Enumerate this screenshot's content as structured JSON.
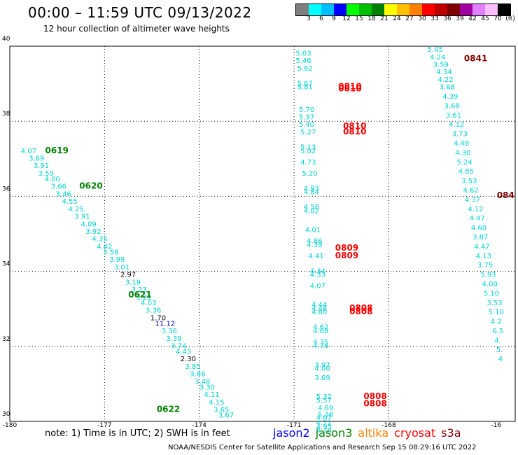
{
  "header": {
    "title": "00:00 – 11:59 UTC 09/13/2022",
    "subtitle": "12 hour collection of altimeter wave heights"
  },
  "colorbar": {
    "colors": [
      "#7f7f7f",
      "#00ffff",
      "#00bfff",
      "#0000ff",
      "#00ff00",
      "#00c000",
      "#008000",
      "#ffff00",
      "#ffc000",
      "#ff8000",
      "#ff0000",
      "#c00000",
      "#800000",
      "#a000a0",
      "#e080ff",
      "#ffbfff",
      "#000000"
    ],
    "labels": [
      "3",
      "6",
      "9",
      "12",
      "15",
      "18",
      "21",
      "24",
      "27",
      "30",
      "33",
      "36",
      "39",
      "42",
      "45",
      "70",
      "(ft)"
    ]
  },
  "axes": {
    "lon_labels": [
      "-180",
      "-177",
      "-174",
      "-171",
      "-168",
      "-16"
    ],
    "lat_labels": [
      "40",
      "38",
      "36",
      "34",
      "32",
      "30"
    ]
  },
  "note": "note:  1) Time is in UTC;  2) SWH is in feet",
  "legend": [
    {
      "name": "jason2",
      "color": "#0000ff"
    },
    {
      "name": "jason3",
      "color": "#008000"
    },
    {
      "name": "altika",
      "color": "#ff8000"
    },
    {
      "name": "cryosat",
      "color": "#ff0000"
    },
    {
      "name": "s3a",
      "color": "#800000"
    }
  ],
  "footer": "NOAA/NESDIS Center for Satellite Applications and Research    Sep 15 08:29:16 UTC 2022",
  "track_colors": {
    "cyan": "#00d0d0",
    "dark": "#000000",
    "blue": "#0000c0",
    "green": "#008000",
    "red": "#ff0000",
    "maroon": "#800000"
  },
  "chart_data": {
    "type": "scatter",
    "xlim": [
      -180,
      -164
    ],
    "ylim": [
      30,
      40
    ],
    "grid": true,
    "time_labels": [
      {
        "lon": -178.88,
        "lat": 37.15,
        "text": "0619",
        "color": "green"
      },
      {
        "lon": -177.8,
        "lat": 36.2,
        "text": "0620",
        "color": "green"
      },
      {
        "lon": -176.25,
        "lat": 33.3,
        "text": "0621",
        "color": "green"
      },
      {
        "lon": -175.35,
        "lat": 30.25,
        "text": "0622",
        "color": "green"
      },
      {
        "lon": -169.6,
        "lat": 38.85,
        "text": "0810",
        "color": "red"
      },
      {
        "lon": -169.6,
        "lat": 38.8,
        "text": "0810",
        "color": "red"
      },
      {
        "lon": -169.45,
        "lat": 37.8,
        "text": "0810",
        "color": "red"
      },
      {
        "lon": -169.45,
        "lat": 37.65,
        "text": "0810",
        "color": "red"
      },
      {
        "lon": -169.7,
        "lat": 34.55,
        "text": "0809",
        "color": "red"
      },
      {
        "lon": -169.7,
        "lat": 34.35,
        "text": "0809",
        "color": "red"
      },
      {
        "lon": -169.25,
        "lat": 32.95,
        "text": "0808",
        "color": "red"
      },
      {
        "lon": -169.25,
        "lat": 32.85,
        "text": "0808",
        "color": "red"
      },
      {
        "lon": -168.8,
        "lat": 30.6,
        "text": "0808",
        "color": "red"
      },
      {
        "lon": -168.8,
        "lat": 30.4,
        "text": "0808",
        "color": "red"
      },
      {
        "lon": -165.62,
        "lat": 39.6,
        "text": "0841",
        "color": "maroon"
      },
      {
        "lon": -164.58,
        "lat": 35.95,
        "text": "084",
        "color": "maroon"
      }
    ],
    "points": [
      {
        "lon": -179.65,
        "lat": 37.15,
        "swh": "4.07",
        "color": "cyan"
      },
      {
        "lon": -179.4,
        "lat": 36.95,
        "swh": "3.69",
        "color": "cyan"
      },
      {
        "lon": -179.25,
        "lat": 36.75,
        "swh": "3.91",
        "color": "cyan"
      },
      {
        "lon": -179.1,
        "lat": 36.55,
        "swh": "3.59",
        "color": "cyan"
      },
      {
        "lon": -178.9,
        "lat": 36.4,
        "swh": "4.00",
        "color": "cyan"
      },
      {
        "lon": -178.7,
        "lat": 36.2,
        "swh": "3.66",
        "color": "cyan"
      },
      {
        "lon": -178.55,
        "lat": 36.0,
        "swh": "3.46",
        "color": "cyan"
      },
      {
        "lon": -178.35,
        "lat": 35.8,
        "swh": "4.55",
        "color": "cyan"
      },
      {
        "lon": -178.15,
        "lat": 35.6,
        "swh": "4.25",
        "color": "cyan"
      },
      {
        "lon": -177.95,
        "lat": 35.4,
        "swh": "3.91",
        "color": "cyan"
      },
      {
        "lon": -177.75,
        "lat": 35.2,
        "swh": "4.09",
        "color": "cyan"
      },
      {
        "lon": -177.6,
        "lat": 35.0,
        "swh": "3.92",
        "color": "cyan"
      },
      {
        "lon": -177.4,
        "lat": 34.8,
        "swh": "4.35",
        "color": "cyan"
      },
      {
        "lon": -177.25,
        "lat": 34.6,
        "swh": "4.42",
        "color": "cyan"
      },
      {
        "lon": -177.05,
        "lat": 34.45,
        "swh": "3.58",
        "color": "cyan"
      },
      {
        "lon": -176.85,
        "lat": 34.25,
        "swh": "3.99",
        "color": "cyan"
      },
      {
        "lon": -176.7,
        "lat": 34.05,
        "swh": "3.01",
        "color": "cyan"
      },
      {
        "lon": -176.5,
        "lat": 33.85,
        "swh": "2.97",
        "color": "dark"
      },
      {
        "lon": -176.35,
        "lat": 33.65,
        "swh": "3.19",
        "color": "cyan"
      },
      {
        "lon": -176.15,
        "lat": 33.45,
        "swh": "3.23",
        "color": "cyan"
      },
      {
        "lon": -176.0,
        "lat": 33.25,
        "swh": "3.22",
        "color": "cyan"
      },
      {
        "lon": -175.85,
        "lat": 33.1,
        "swh": "4.03",
        "color": "cyan"
      },
      {
        "lon": -175.7,
        "lat": 32.9,
        "swh": "3.36",
        "color": "cyan"
      },
      {
        "lon": -175.55,
        "lat": 32.7,
        "swh": "1.70",
        "color": "dark"
      },
      {
        "lon": -175.4,
        "lat": 32.55,
        "swh": "11.12",
        "color": "blue"
      },
      {
        "lon": -175.2,
        "lat": 32.35,
        "swh": "3.36",
        "color": "cyan"
      },
      {
        "lon": -175.05,
        "lat": 32.15,
        "swh": "3.39",
        "color": "cyan"
      },
      {
        "lon": -174.9,
        "lat": 31.95,
        "swh": "3.74",
        "color": "cyan"
      },
      {
        "lon": -174.75,
        "lat": 31.8,
        "swh": "4.43",
        "color": "cyan"
      },
      {
        "lon": -174.6,
        "lat": 31.6,
        "swh": "2.30",
        "color": "dark"
      },
      {
        "lon": -174.45,
        "lat": 31.4,
        "swh": "3.85",
        "color": "cyan"
      },
      {
        "lon": -174.3,
        "lat": 31.2,
        "swh": "3.86",
        "color": "cyan"
      },
      {
        "lon": -174.15,
        "lat": 31.0,
        "swh": "3.48",
        "color": "cyan"
      },
      {
        "lon": -174.0,
        "lat": 30.85,
        "swh": "3.30",
        "color": "cyan"
      },
      {
        "lon": -173.85,
        "lat": 30.65,
        "swh": "4.11",
        "color": "cyan"
      },
      {
        "lon": -173.7,
        "lat": 30.45,
        "swh": "4.15",
        "color": "cyan"
      },
      {
        "lon": -173.55,
        "lat": 30.25,
        "swh": "3.65",
        "color": "cyan"
      },
      {
        "lon": -173.4,
        "lat": 30.1,
        "swh": "3.67",
        "color": "cyan"
      },
      {
        "lon": -170.95,
        "lat": 39.75,
        "swh": "5.03",
        "color": "cyan"
      },
      {
        "lon": -170.95,
        "lat": 39.55,
        "swh": "5.46",
        "color": "cyan"
      },
      {
        "lon": -170.9,
        "lat": 39.35,
        "swh": "5.62",
        "color": "cyan"
      },
      {
        "lon": -170.9,
        "lat": 38.95,
        "swh": "5.67",
        "color": "cyan"
      },
      {
        "lon": -170.9,
        "lat": 38.85,
        "swh": "5.81",
        "color": "cyan"
      },
      {
        "lon": -170.85,
        "lat": 38.25,
        "swh": "5.70",
        "color": "cyan"
      },
      {
        "lon": -170.85,
        "lat": 38.05,
        "swh": "5.37",
        "color": "cyan"
      },
      {
        "lon": -170.85,
        "lat": 37.85,
        "swh": "5.40",
        "color": "cyan"
      },
      {
        "lon": -170.8,
        "lat": 37.65,
        "swh": "5.27",
        "color": "cyan"
      },
      {
        "lon": -170.8,
        "lat": 37.25,
        "swh": "5.13",
        "color": "cyan"
      },
      {
        "lon": -170.8,
        "lat": 37.15,
        "swh": "5.02",
        "color": "cyan"
      },
      {
        "lon": -170.8,
        "lat": 36.85,
        "swh": "4.73",
        "color": "cyan"
      },
      {
        "lon": -170.75,
        "lat": 36.55,
        "swh": "5.20",
        "color": "cyan"
      },
      {
        "lon": -170.7,
        "lat": 36.15,
        "swh": "4.93",
        "color": "cyan"
      },
      {
        "lon": -170.7,
        "lat": 36.05,
        "swh": "4.84",
        "color": "cyan"
      },
      {
        "lon": -170.7,
        "lat": 35.65,
        "swh": "4.58",
        "color": "cyan"
      },
      {
        "lon": -170.7,
        "lat": 35.55,
        "swh": "4.02",
        "color": "cyan"
      },
      {
        "lon": -170.65,
        "lat": 35.05,
        "swh": "4.01",
        "color": "cyan"
      },
      {
        "lon": -170.6,
        "lat": 34.75,
        "swh": "4.86",
        "color": "cyan"
      },
      {
        "lon": -170.6,
        "lat": 34.65,
        "swh": "4.39",
        "color": "cyan"
      },
      {
        "lon": -170.55,
        "lat": 34.35,
        "swh": "4.41",
        "color": "cyan"
      },
      {
        "lon": -170.5,
        "lat": 33.95,
        "swh": "4.34",
        "color": "cyan"
      },
      {
        "lon": -170.5,
        "lat": 33.85,
        "swh": "4.33",
        "color": "cyan"
      },
      {
        "lon": -170.5,
        "lat": 33.55,
        "swh": "4.07",
        "color": "cyan"
      },
      {
        "lon": -170.45,
        "lat": 33.05,
        "swh": "4.44",
        "color": "cyan"
      },
      {
        "lon": -170.45,
        "lat": 32.95,
        "swh": "4.48",
        "color": "cyan"
      },
      {
        "lon": -170.45,
        "lat": 32.85,
        "swh": "4.80",
        "color": "cyan"
      },
      {
        "lon": -170.4,
        "lat": 32.45,
        "swh": "4.62",
        "color": "cyan"
      },
      {
        "lon": -170.4,
        "lat": 32.35,
        "swh": "4.68",
        "color": "cyan"
      },
      {
        "lon": -170.4,
        "lat": 32.05,
        "swh": "4.35",
        "color": "cyan"
      },
      {
        "lon": -170.4,
        "lat": 31.95,
        "swh": "4.78",
        "color": "cyan"
      },
      {
        "lon": -170.35,
        "lat": 31.45,
        "swh": "3.97",
        "color": "cyan"
      },
      {
        "lon": -170.35,
        "lat": 31.35,
        "swh": "4.00",
        "color": "cyan"
      },
      {
        "lon": -170.35,
        "lat": 31.1,
        "swh": "3.69",
        "color": "cyan"
      },
      {
        "lon": -170.3,
        "lat": 30.6,
        "swh": "5.32",
        "color": "cyan"
      },
      {
        "lon": -170.3,
        "lat": 30.5,
        "swh": "5.57",
        "color": "cyan"
      },
      {
        "lon": -170.3,
        "lat": 30.05,
        "swh": "4.67",
        "color": "cyan"
      },
      {
        "lon": -170.3,
        "lat": 29.9,
        "swh": "4.71",
        "color": "cyan"
      },
      {
        "lon": -170.3,
        "lat": 29.8,
        "swh": "4.95",
        "color": "cyan"
      },
      {
        "lon": -170.3,
        "lat": 29.7,
        "swh": "4.70",
        "color": "cyan"
      },
      {
        "lon": -170.25,
        "lat": 30.3,
        "swh": "4.69",
        "color": "cyan"
      },
      {
        "lon": -170.25,
        "lat": 30.12,
        "swh": "5.38",
        "color": "cyan"
      },
      {
        "lon": -166.78,
        "lat": 39.85,
        "swh": "5.45",
        "color": "cyan"
      },
      {
        "lon": -166.7,
        "lat": 39.65,
        "swh": "4.24",
        "color": "cyan"
      },
      {
        "lon": -166.6,
        "lat": 39.45,
        "swh": "3.59",
        "color": "cyan"
      },
      {
        "lon": -166.5,
        "lat": 39.25,
        "swh": "4.34",
        "color": "cyan"
      },
      {
        "lon": -166.45,
        "lat": 39.05,
        "swh": "4.22",
        "color": "cyan"
      },
      {
        "lon": -166.4,
        "lat": 38.85,
        "swh": "3.68",
        "color": "cyan"
      },
      {
        "lon": -166.3,
        "lat": 38.6,
        "swh": "4.39",
        "color": "cyan"
      },
      {
        "lon": -166.25,
        "lat": 38.35,
        "swh": "3.68",
        "color": "cyan"
      },
      {
        "lon": -166.2,
        "lat": 38.1,
        "swh": "3.61",
        "color": "cyan"
      },
      {
        "lon": -166.1,
        "lat": 37.85,
        "swh": "4.12",
        "color": "cyan"
      },
      {
        "lon": -166.0,
        "lat": 37.6,
        "swh": "3.73",
        "color": "cyan"
      },
      {
        "lon": -165.95,
        "lat": 37.35,
        "swh": "4.48",
        "color": "cyan"
      },
      {
        "lon": -165.9,
        "lat": 37.1,
        "swh": "4.30",
        "color": "cyan"
      },
      {
        "lon": -165.85,
        "lat": 36.85,
        "swh": "5.24",
        "color": "cyan"
      },
      {
        "lon": -165.8,
        "lat": 36.6,
        "swh": "4.85",
        "color": "cyan"
      },
      {
        "lon": -165.7,
        "lat": 36.35,
        "swh": "3.53",
        "color": "cyan"
      },
      {
        "lon": -165.65,
        "lat": 36.1,
        "swh": "4.62",
        "color": "cyan"
      },
      {
        "lon": -165.6,
        "lat": 35.85,
        "swh": "4.37",
        "color": "cyan"
      },
      {
        "lon": -165.5,
        "lat": 35.6,
        "swh": "4.12",
        "color": "cyan"
      },
      {
        "lon": -165.45,
        "lat": 35.35,
        "swh": "4.47",
        "color": "cyan"
      },
      {
        "lon": -165.4,
        "lat": 35.1,
        "swh": "4.60",
        "color": "cyan"
      },
      {
        "lon": -165.35,
        "lat": 34.85,
        "swh": "3.87",
        "color": "cyan"
      },
      {
        "lon": -165.3,
        "lat": 34.6,
        "swh": "4.47",
        "color": "cyan"
      },
      {
        "lon": -165.25,
        "lat": 34.35,
        "swh": "4.13",
        "color": "cyan"
      },
      {
        "lon": -165.2,
        "lat": 34.1,
        "swh": "3.75",
        "color": "cyan"
      },
      {
        "lon": -165.1,
        "lat": 33.85,
        "swh": "5.93",
        "color": "cyan"
      },
      {
        "lon": -165.05,
        "lat": 33.6,
        "swh": "4.00",
        "color": "cyan"
      },
      {
        "lon": -165.0,
        "lat": 33.35,
        "swh": "5.10",
        "color": "cyan"
      },
      {
        "lon": -164.9,
        "lat": 33.1,
        "swh": "3.53",
        "color": "cyan"
      },
      {
        "lon": -164.85,
        "lat": 32.85,
        "swh": "5.10",
        "color": "cyan"
      },
      {
        "lon": -164.78,
        "lat": 32.6,
        "swh": "4.2",
        "color": "cyan"
      },
      {
        "lon": -164.72,
        "lat": 32.35,
        "swh": "6.5",
        "color": "cyan"
      },
      {
        "lon": -164.66,
        "lat": 32.1,
        "swh": "4.",
        "color": "cyan"
      },
      {
        "lon": -164.6,
        "lat": 31.85,
        "swh": "5.",
        "color": "cyan"
      },
      {
        "lon": -164.54,
        "lat": 31.6,
        "swh": "4",
        "color": "cyan"
      }
    ]
  }
}
